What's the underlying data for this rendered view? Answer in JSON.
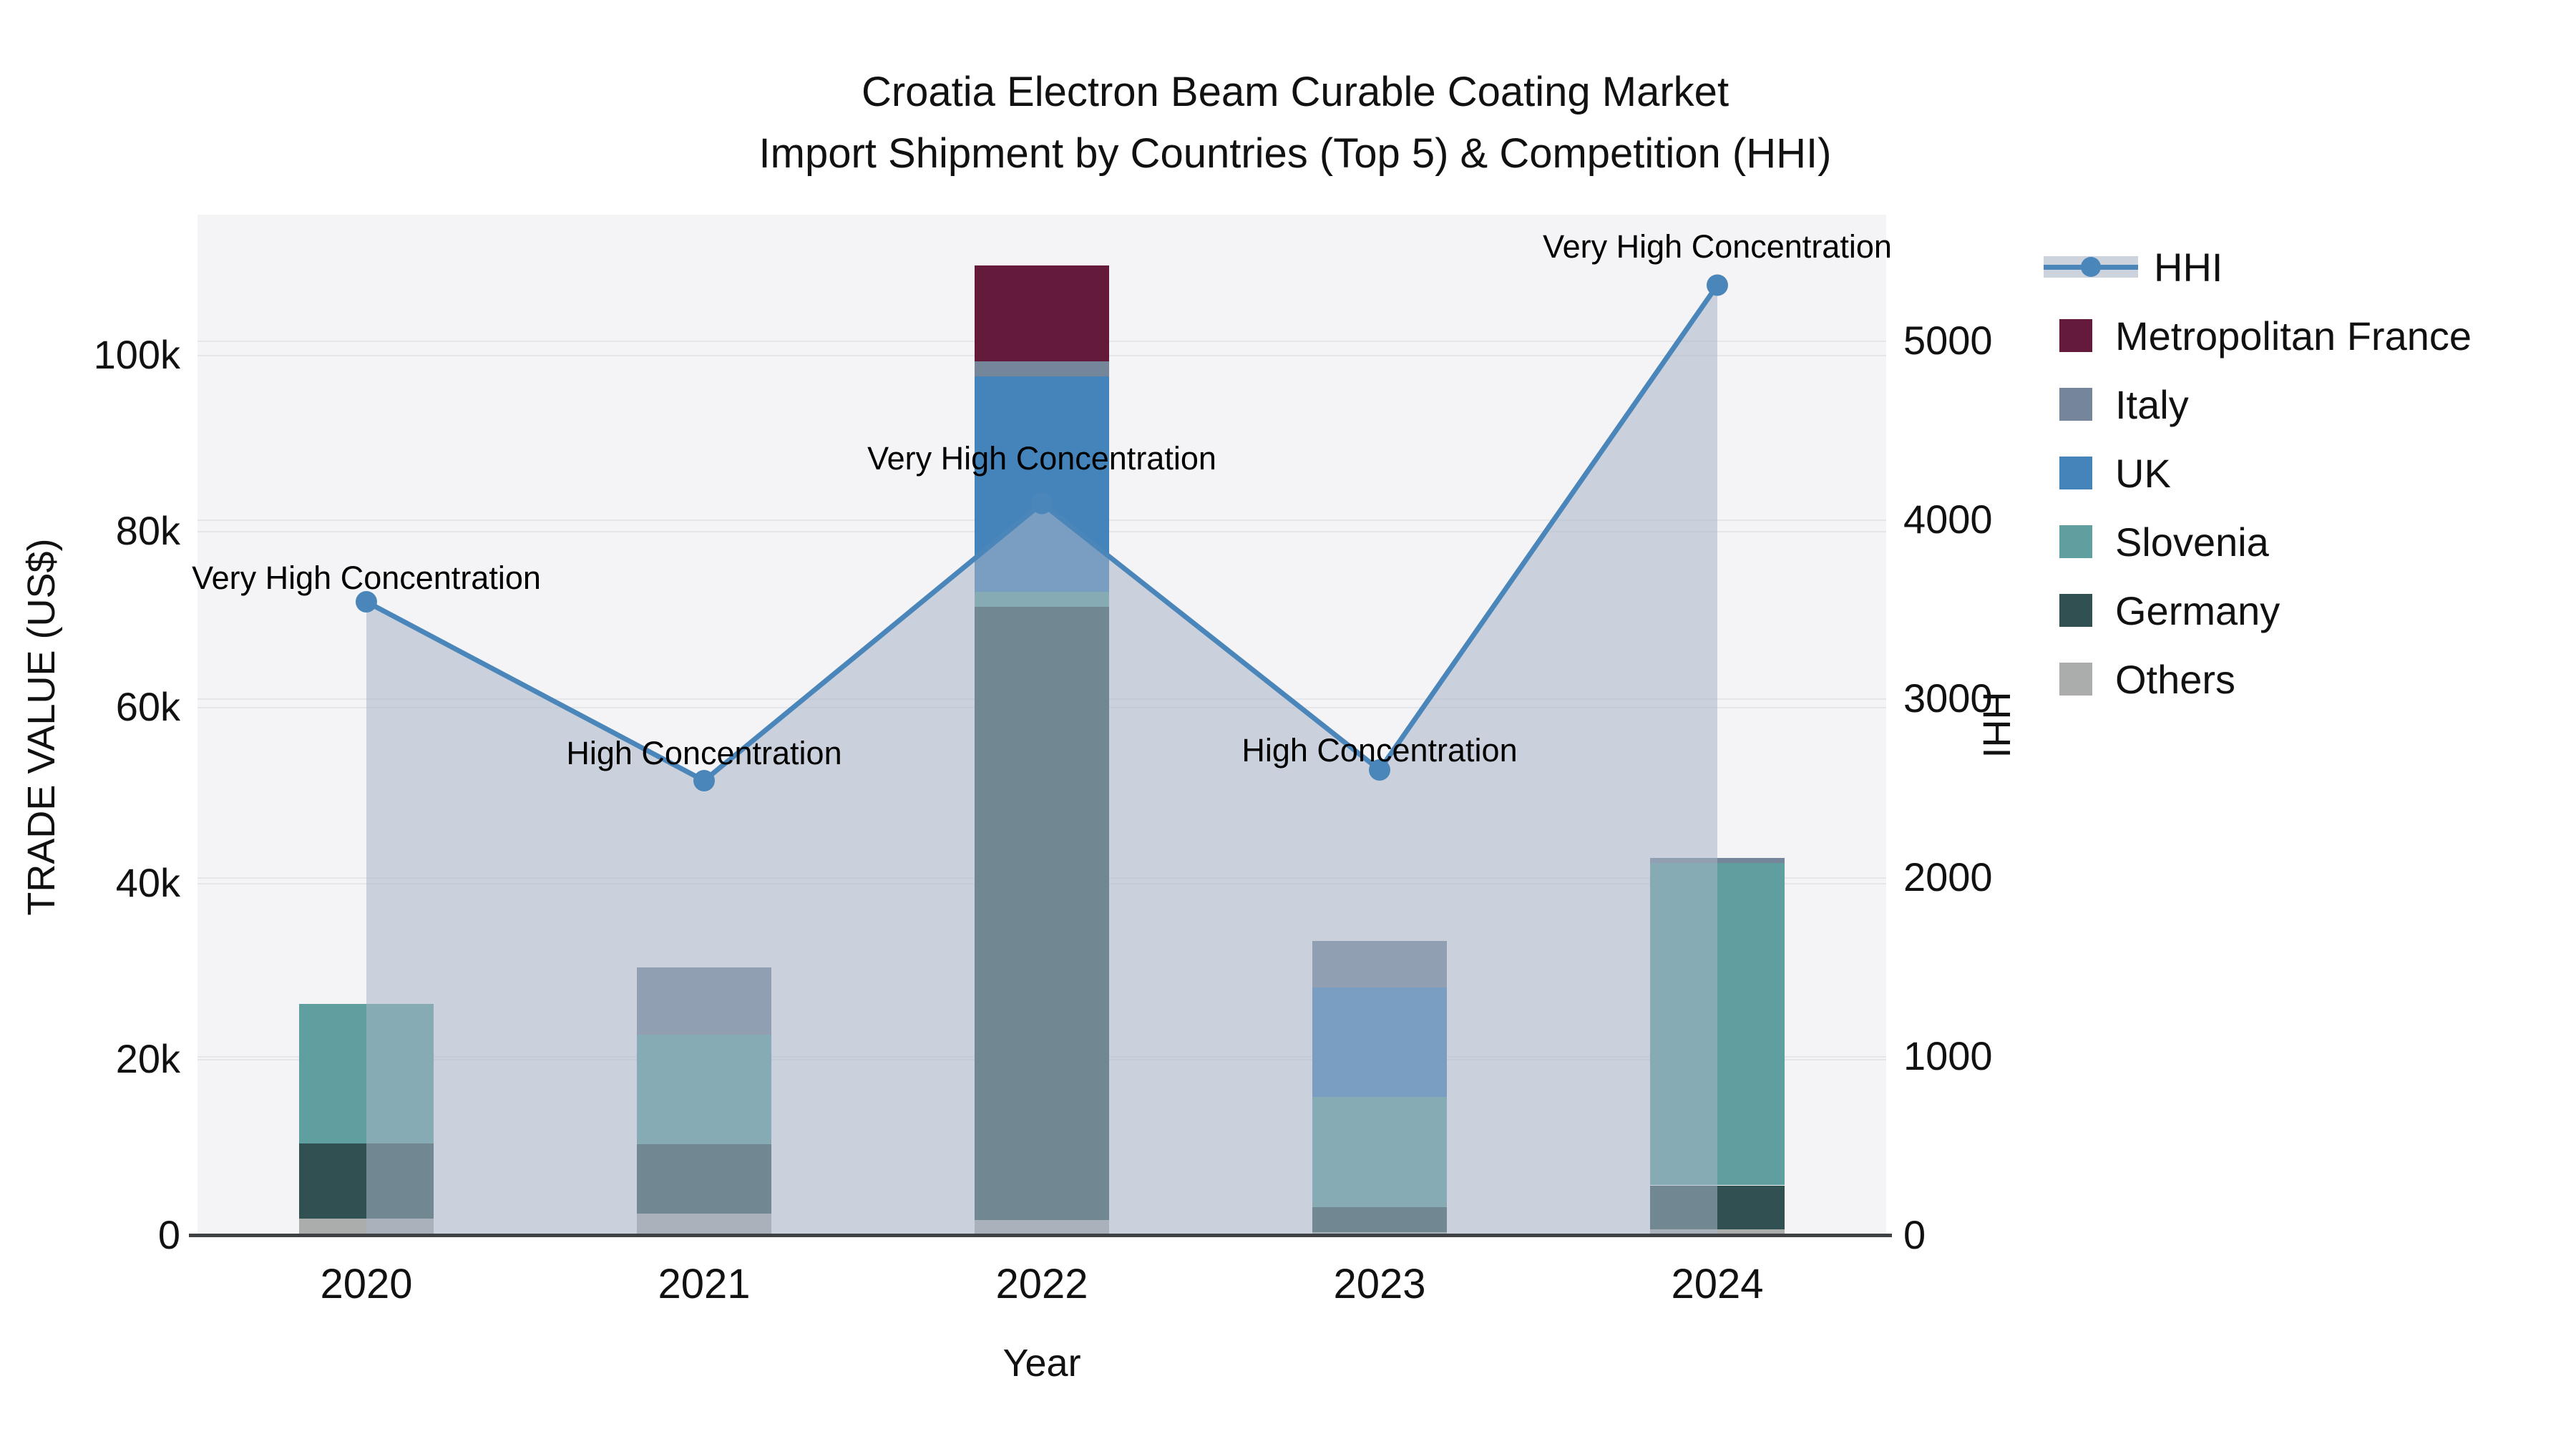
{
  "title": {
    "line1": "Croatia Electron Beam Curable Coating Market",
    "line2": "Import Shipment by Countries (Top 5) & Competition (HHI)"
  },
  "axes": {
    "x": {
      "title": "Year",
      "categories": [
        "2020",
        "2021",
        "2022",
        "2023",
        "2024"
      ]
    },
    "y_left": {
      "title": "TRADE VALUE (US$)",
      "tick_labels": [
        "0",
        "20k",
        "40k",
        "60k",
        "80k",
        "100k"
      ],
      "tick_values": [
        0,
        20000,
        40000,
        60000,
        80000,
        100000
      ],
      "range": [
        0,
        116000
      ],
      "grid": true
    },
    "y_right": {
      "title": "HHI",
      "tick_labels": [
        "0",
        "1000",
        "2000",
        "3000",
        "4000",
        "5000"
      ],
      "tick_values": [
        0,
        1000,
        2000,
        3000,
        4000,
        5000
      ],
      "range": [
        0,
        5700
      ],
      "grid": true
    }
  },
  "colors": {
    "hhi_line": "#4b86bb",
    "hhi_area_fill": "rgba(168,180,198,0.55)",
    "legend_band": "#ccd3dd",
    "plot_background": "#f4f4f6",
    "gridline": "#e5e6e9",
    "axis_line": "#3f4245"
  },
  "legend": {
    "items": [
      {
        "label": "HHI",
        "type": "line",
        "color": "#4b86bb"
      },
      {
        "label": "Metropolitan France",
        "type": "swatch",
        "color": "#641a3b"
      },
      {
        "label": "Italy",
        "type": "swatch",
        "color": "#75859a"
      },
      {
        "label": "UK",
        "type": "swatch",
        "color": "#4484ba"
      },
      {
        "label": "Slovenia",
        "type": "swatch",
        "color": "#5f9fa0"
      },
      {
        "label": "Germany",
        "type": "swatch",
        "color": "#305052"
      },
      {
        "label": "Others",
        "type": "swatch",
        "color": "#abadad"
      }
    ]
  },
  "chart_data": {
    "type": "bar",
    "subtype": "stacked-bars-with-line-overlay",
    "title": "Croatia Electron Beam Curable Coating Market Import Shipment by Countries (Top 5) & Competition (HHI)",
    "xlabel": "Year",
    "ylabel_left": "TRADE VALUE (US$)",
    "ylabel_right": "HHI",
    "ylim_left": [
      0,
      116000
    ],
    "ylim_right": [
      0,
      5700
    ],
    "legend_position": "right",
    "grid": true,
    "categories": [
      "2020",
      "2021",
      "2022",
      "2023",
      "2024"
    ],
    "bar_series": [
      {
        "name": "Others",
        "color": "#abadad",
        "values": [
          1900,
          2400,
          1700,
          300,
          650
        ]
      },
      {
        "name": "Germany",
        "color": "#305052",
        "values": [
          8500,
          7900,
          69700,
          2900,
          5000
        ]
      },
      {
        "name": "Slovenia",
        "color": "#5f9fa0",
        "values": [
          15900,
          12500,
          1700,
          12500,
          36600
        ]
      },
      {
        "name": "UK",
        "color": "#4484ba",
        "values": [
          0,
          0,
          24500,
          12400,
          0
        ]
      },
      {
        "name": "Italy",
        "color": "#75859a",
        "values": [
          0,
          7600,
          1700,
          5300,
          600
        ]
      },
      {
        "name": "Metropolitan France",
        "color": "#641a3b",
        "values": [
          0,
          0,
          10900,
          0,
          0
        ]
      }
    ],
    "bar_totals": [
      26300,
      30400,
      110200,
      33400,
      42850
    ],
    "line_series": {
      "name": "HHI",
      "axis": "right",
      "color": "#4b86bb",
      "values": [
        3540,
        2540,
        4090,
        2600,
        5310
      ],
      "area_fill": true,
      "markers": true
    },
    "annotations": [
      {
        "x": "2020",
        "text": "Very High Concentration"
      },
      {
        "x": "2021",
        "text": "High Concentration"
      },
      {
        "x": "2022",
        "text": "Very High Concentration"
      },
      {
        "x": "2023",
        "text": "High Concentration"
      },
      {
        "x": "2024",
        "text": "Very High Concentration"
      }
    ]
  }
}
